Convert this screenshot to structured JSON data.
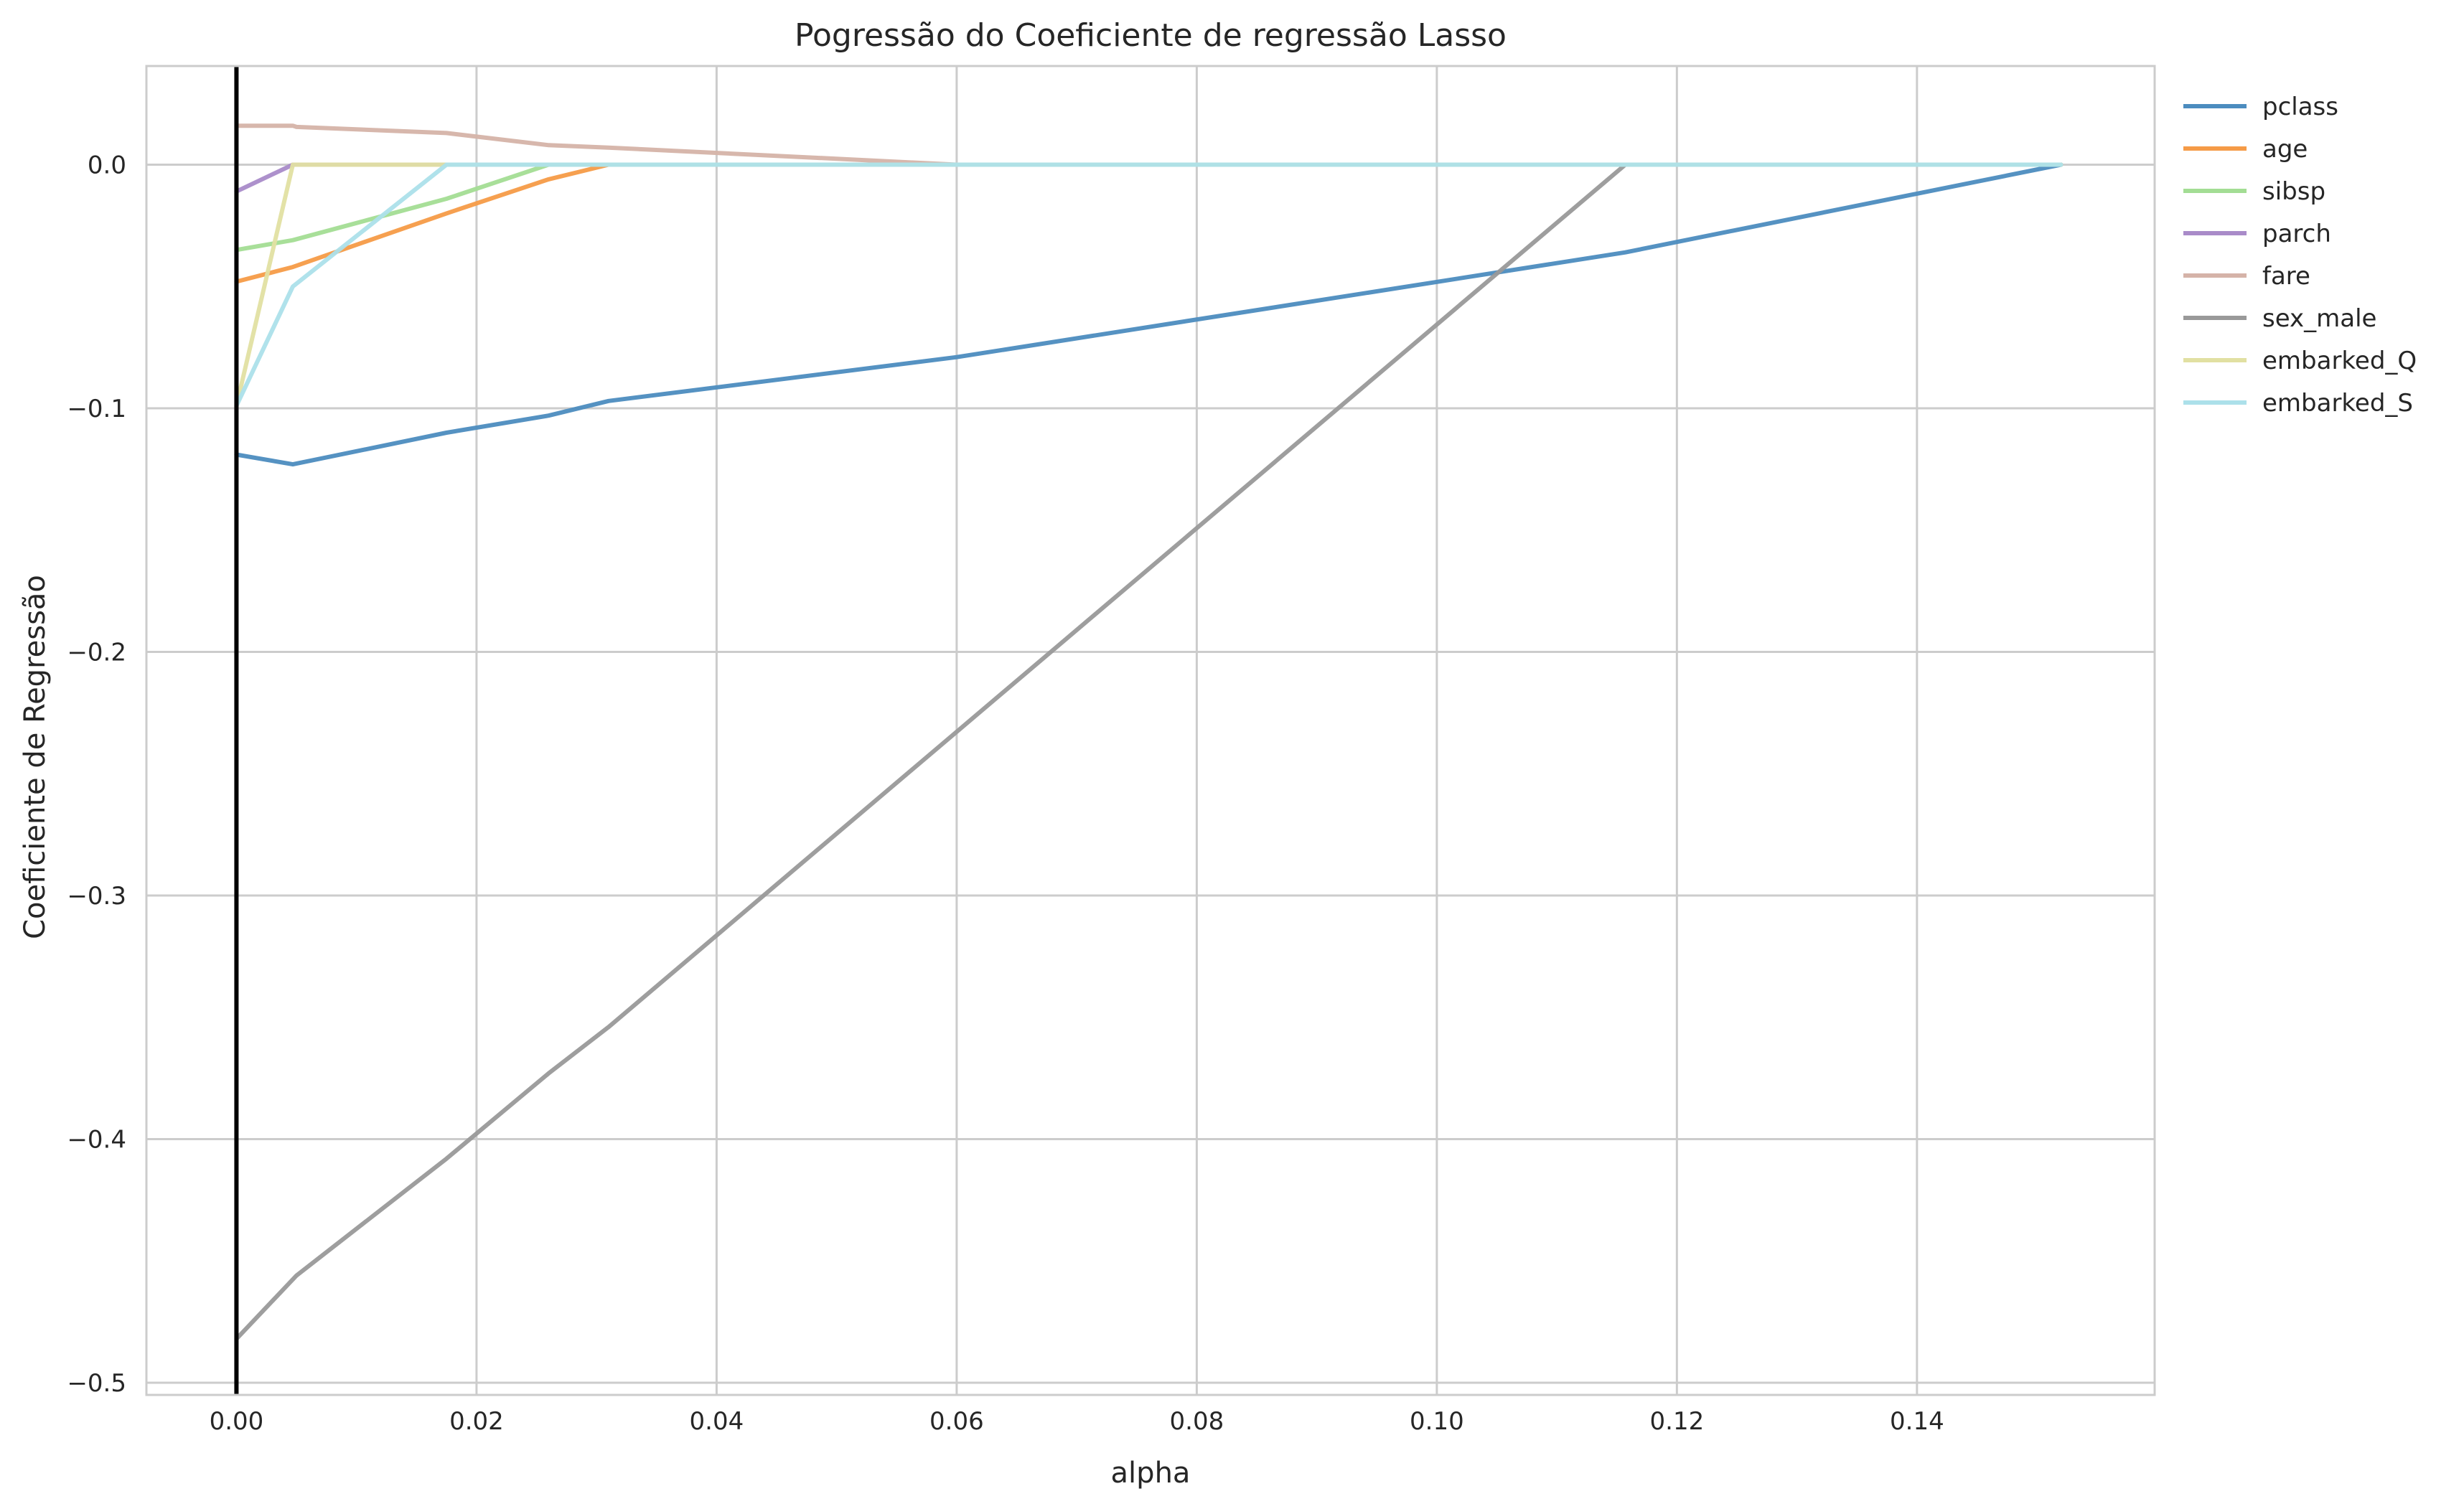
{
  "chart_data": {
    "type": "line",
    "title": "Pogressão do Coeficiente de regressão Lasso",
    "xlabel": "alpha",
    "ylabel": "Coeficiente de Regressão",
    "xlim": [
      -0.0075,
      0.1598
    ],
    "ylim": [
      -0.505,
      0.0405
    ],
    "xticks": [
      0.0,
      0.02,
      0.04,
      0.06,
      0.08,
      0.1,
      0.12,
      0.14
    ],
    "xtick_labels": [
      "0.00",
      "0.02",
      "0.04",
      "0.06",
      "0.08",
      "0.10",
      "0.12",
      "0.14"
    ],
    "yticks": [
      0.0,
      -0.1,
      -0.2,
      -0.3,
      -0.4,
      -0.5
    ],
    "ytick_labels": [
      "0.0",
      "−0.1",
      "−0.2",
      "−0.3",
      "−0.4",
      "−0.5"
    ],
    "grid": true,
    "legend_position": "outside-right-top",
    "vline": {
      "x": 0.0,
      "color": "#000000"
    },
    "series": [
      {
        "name": "pclass",
        "color": "#4c8cbf",
        "x": [
          0,
          0.0047,
          0.0175,
          0.026,
          0.031,
          0.06,
          0.1157,
          0.152
        ],
        "y": [
          -0.119,
          -0.123,
          -0.11,
          -0.103,
          -0.097,
          -0.079,
          -0.036,
          0.0
        ]
      },
      {
        "name": "age",
        "color": "#f59b47",
        "x": [
          0,
          0.0047,
          0.0175,
          0.026,
          0.031,
          0.152
        ],
        "y": [
          -0.048,
          -0.042,
          -0.02,
          -0.006,
          0.0,
          0.0
        ]
      },
      {
        "name": "sibsp",
        "color": "#a3dd94",
        "x": [
          0,
          0.0047,
          0.0175,
          0.026,
          0.152
        ],
        "y": [
          -0.035,
          -0.031,
          -0.014,
          0.0,
          0.0
        ]
      },
      {
        "name": "parch",
        "color": "#a98bc9",
        "x": [
          0,
          0.0047,
          0.152
        ],
        "y": [
          -0.011,
          0.0,
          0.0
        ]
      },
      {
        "name": "fare",
        "color": "#d5b3a8",
        "x": [
          0,
          0.0047,
          0.005,
          0.0175,
          0.026,
          0.031,
          0.06,
          0.152
        ],
        "y": [
          0.016,
          0.016,
          0.0155,
          0.013,
          0.008,
          0.007,
          0.0,
          0.0
        ]
      },
      {
        "name": "sex_male",
        "color": "#999999",
        "x": [
          0,
          0.005,
          0.0175,
          0.026,
          0.031,
          0.1157,
          0.152
        ],
        "y": [
          -0.482,
          -0.456,
          -0.408,
          -0.373,
          -0.354,
          0.0,
          0.0
        ]
      },
      {
        "name": "embarked_Q",
        "color": "#e1e0a2",
        "x": [
          0,
          0.0047,
          0.152
        ],
        "y": [
          -0.099,
          0.0,
          0.0
        ]
      },
      {
        "name": "embarked_S",
        "color": "#ace0ea",
        "x": [
          0,
          0.0047,
          0.0175,
          0.152
        ],
        "y": [
          -0.099,
          -0.05,
          0.0,
          0.0
        ]
      }
    ]
  }
}
